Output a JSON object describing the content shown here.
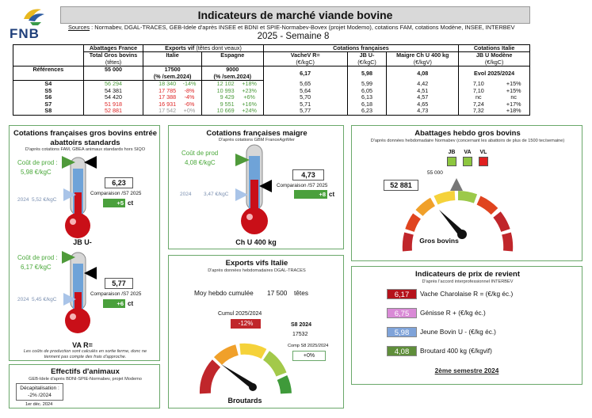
{
  "header": {
    "logo_text": "FNB",
    "title": "Indicateurs de marché viande bovine",
    "sources_label": "Sources",
    "sources_text": " : Normabev, DGAL-TRACES, GEB-Idele d'après INSEE et BDNI et SPIE-Normabev-Bovex (projet Modemo), cotations FAM, cotations Modène, INSEE, INTERBEV",
    "week": "2025 - Semaine 8"
  },
  "table": {
    "group_abattages": "Abattages France",
    "group_exports": "Exports vif",
    "group_exports_note": "(têtes dont veaux)",
    "group_cot_fr": "Cotations françaises",
    "group_cot_it": "Cotations Italie",
    "h_total": "Total Gros bovins",
    "h_total_unit": "(têtes)",
    "h_italie": "Italie",
    "h_espagne": "Espagne",
    "h_vache": "VacheV R=",
    "h_vache_unit": "(€/kgC)",
    "h_jb": "JB U-",
    "h_jb_unit": "(€/kgC)",
    "h_maigre": "Maigre Ch U 400 kg",
    "h_maigre_unit": "(€/kgV)",
    "h_modene": "JB U Modène",
    "h_modene_unit": "(€/kgC)",
    "ref_label": "Références",
    "ref": {
      "total": "55 000",
      "italie": "17500",
      "italie_sub": "(% /sem.2024)",
      "espagne": "9000",
      "espagne_sub": "(% /sem.2024)",
      "vache": "6,17",
      "jb": "5,98",
      "maigre": "4,08",
      "modene": "Evol 2025/2024"
    },
    "rows": [
      {
        "week": "S4",
        "total": "56 294",
        "it": "18 340",
        "it_pct": "-14%",
        "es": "12 102",
        "es_pct": "+18%",
        "vache": "5,65",
        "jb": "5,99",
        "maigre": "4,42",
        "mod": "7,10",
        "mod_pct": "+15%",
        "tc": "grn",
        "ic": "grn",
        "ec": "grn"
      },
      {
        "week": "S5",
        "total": "54 381",
        "it": "17 785",
        "it_pct": "-8%",
        "es": "10 993",
        "es_pct": "+23%",
        "vache": "5,64",
        "jb": "6,05",
        "maigre": "4,51",
        "mod": "7,10",
        "mod_pct": "+15%",
        "tc": "",
        "ic": "red",
        "ec": "grn"
      },
      {
        "week": "S6",
        "total": "54 420",
        "it": "17 388",
        "it_pct": "-4%",
        "es": "9 429",
        "es_pct": "+6%",
        "vache": "5,70",
        "jb": "6,13",
        "maigre": "4,57",
        "mod": "nc",
        "mod_pct": "nc",
        "tc": "",
        "ic": "red",
        "ec": "grn"
      },
      {
        "week": "S7",
        "total": "51 918",
        "it": "16 931",
        "it_pct": "-6%",
        "es": "9 551",
        "es_pct": "+16%",
        "vache": "5,71",
        "jb": "6,18",
        "maigre": "4,65",
        "mod": "7,24",
        "mod_pct": "+17%",
        "tc": "red",
        "ic": "red",
        "ec": "grn"
      },
      {
        "week": "S8",
        "total": "52 881",
        "it": "17 542",
        "it_pct": "+0%",
        "es": "10 669",
        "es_pct": "+24%",
        "vache": "5,77",
        "jb": "6,23",
        "maigre": "4,73",
        "mod": "7,32",
        "mod_pct": "+18%",
        "tc": "red",
        "ic": "gry",
        "ec": "grn"
      }
    ]
  },
  "panel_gb": {
    "title1": "Cotations françaises gros bovins entrée",
    "title2": "abattoirs standards",
    "note": "D'après cotations FAM, GBEA animaux standards hors SIQO",
    "t1": {
      "cost_label": "Coût de prod :",
      "cost_value": "5,98 €/kgC",
      "year_label": "2024",
      "year_value": "5,52 €/kgC",
      "value": "6,23",
      "compare": "Comparaison /S7 2025",
      "delta": "+5",
      "unit": "ct",
      "name": "JB U-"
    },
    "t2": {
      "cost_label": "Coût de prod :",
      "cost_value": "6,17 €/kgC",
      "year_label": "2024",
      "year_value": "5,45 €/kgC",
      "value": "5,77",
      "compare": "Comparaison /S7 2025",
      "delta": "+6",
      "unit": "ct",
      "name": "VA R="
    },
    "footnote1": "Les coûts de production sont calculés en sortie ferme, donc ne",
    "footnote2": "tiennent pas compte des frais d'approche."
  },
  "panel_maigre": {
    "title": "Cotations françaises maigre",
    "note": "D'après cotations GBM FranceAgriMer",
    "cost_label": "Coût de prod",
    "cost_value": "4,08 €/kgC",
    "year_label": "2024",
    "year_value": "3,47 €/kgC",
    "value": "4,73",
    "compare": "Comparaison /S7 2025",
    "delta": "+8",
    "unit": "ct",
    "name": "Ch U 400 kg"
  },
  "panel_abattages": {
    "title": "Abattages hebdo gros bovins",
    "note": "D'après données hebdomadaire Normabev (concernant les abattoirs de plus de 1500 tec/semaine)",
    "legend": [
      {
        "label": "JB",
        "color": "#8dc63f"
      },
      {
        "label": "VA",
        "color": "#8dc63f"
      },
      {
        "label": "VL",
        "color": "#e02020"
      }
    ],
    "ref_value": "55 000",
    "value": "52 881",
    "gauge_label": "Gros bovins"
  },
  "panel_exports": {
    "title": "Exports vifs  Italie",
    "note": "D'après données hebdomadaires DGAL-TRACES",
    "moy_label": "Moy hebdo cumulée",
    "moy_value": "17 500",
    "moy_unit": "têtes",
    "cumul_label": "Cumul 2025/2024",
    "cumul_value": "-12%",
    "s8_label": "S8 2024",
    "s8_value": "17532",
    "comp_label": "Comp S8 2025/2024",
    "comp_value": "+0%",
    "gauge_label": "Broutards"
  },
  "panel_effectifs": {
    "title": "Effectifs d'animaux",
    "note": "GEB-Idele d'après BDNI-SPIE-Normabev, projet Modemo",
    "decap_label": "Décapitalisation :",
    "decap_value": "-2% /2024",
    "date": "1er déc. 2024"
  },
  "panel_prix": {
    "title": "Indicateurs de prix de revient",
    "note": "D'après l'accord interprofessionnel INTERBEV",
    "items": [
      {
        "value": "6,17",
        "label": "Vache Charolaise R = (€/kg éc.)",
        "color": "#b5121b"
      },
      {
        "value": "6,75",
        "label": "Génisse R + (€/kg éc.)",
        "color": "#d98ad6"
      },
      {
        "value": "5,98",
        "label": "Jeune Bovin U - (€/kg éc.)",
        "color": "#7fa3d9"
      },
      {
        "value": "4,08",
        "label": "Broutard 400 kg (€/kgvif)",
        "color": "#5f8e3a"
      }
    ],
    "period": "2ème semestre 2024"
  }
}
